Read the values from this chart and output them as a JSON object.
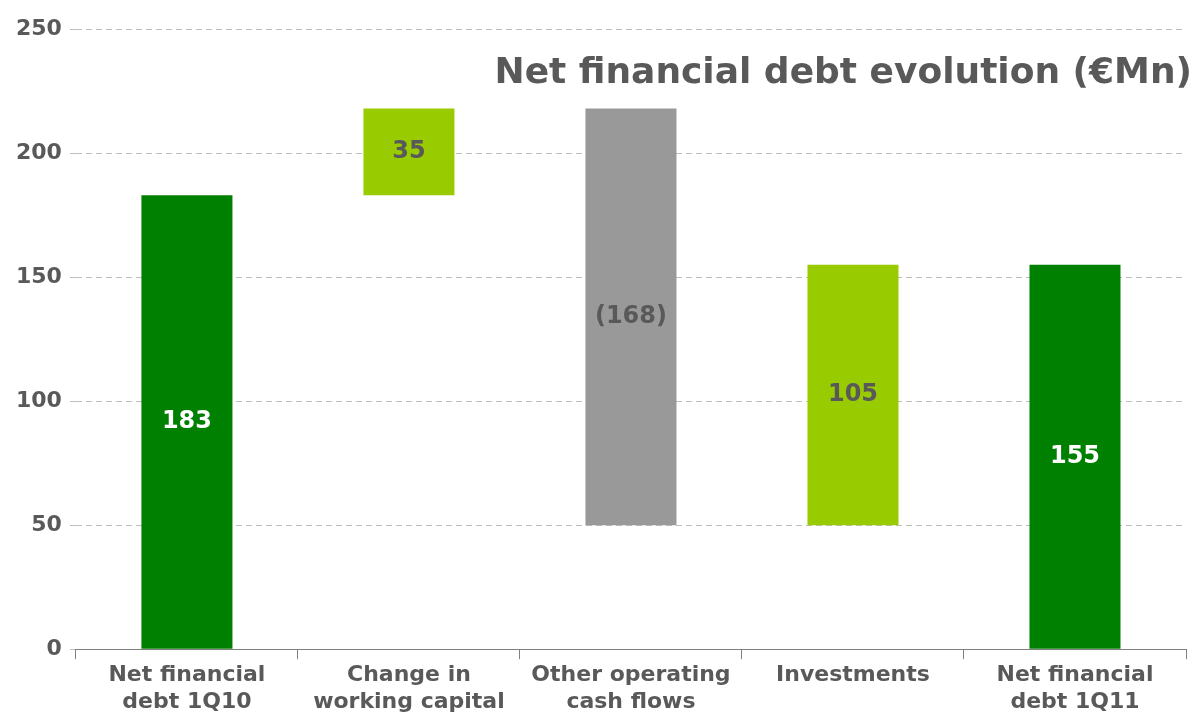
{
  "chart_data": {
    "type": "bar",
    "title": "Net financial debt evolution (€Mn)",
    "categories": [
      "Net financial debt 1Q10",
      "Change in working capital",
      "Other operating cash flows",
      "Investments",
      "Net financial debt 1Q11"
    ],
    "values": [
      183,
      35,
      -168,
      105,
      155
    ],
    "base": [
      0,
      183,
      218,
      50,
      0
    ],
    "colors": [
      "#008000",
      "#99cc00",
      "#999999",
      "#99cc00",
      "#008000"
    ],
    "value_labels": [
      "183",
      "35",
      "(168)",
      "105",
      "155"
    ],
    "ylim": [
      0,
      250
    ],
    "yticks": [
      0,
      50,
      100,
      150,
      200,
      250
    ],
    "grid": "y",
    "legend": false
  }
}
